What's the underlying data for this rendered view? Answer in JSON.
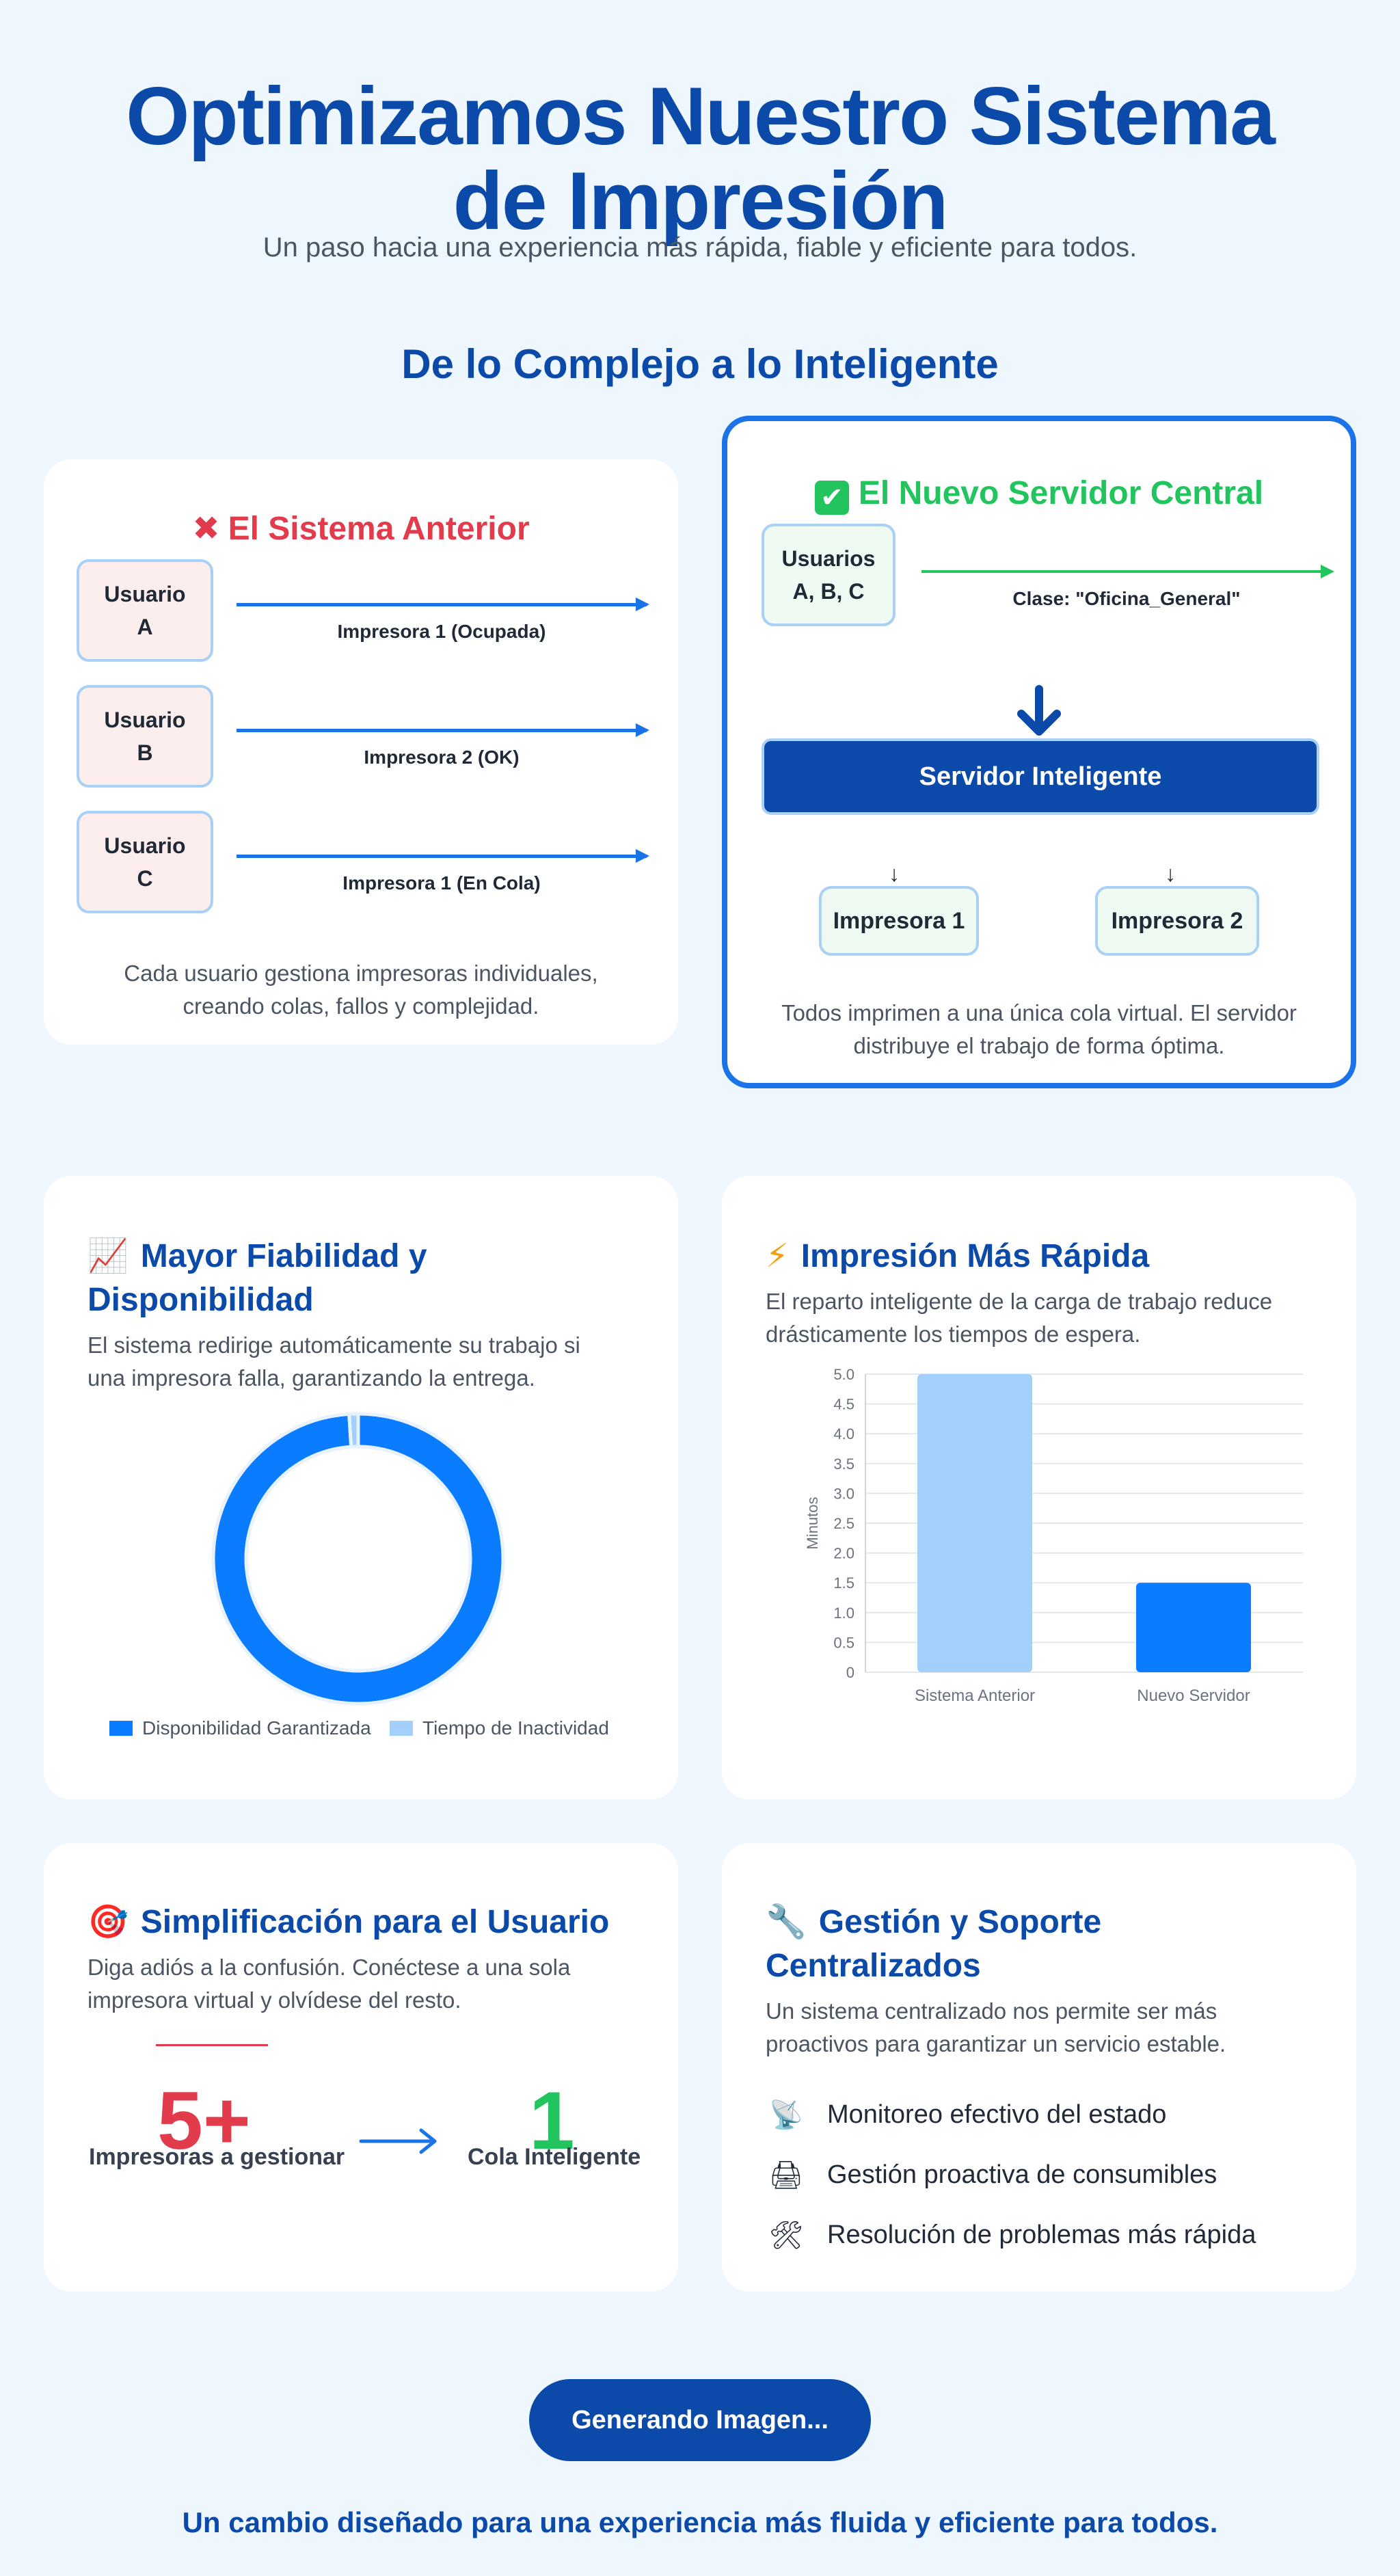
{
  "hero": {
    "title_line1": "Optimizamos Nuestro Sistema",
    "title_line2": "de Impresión",
    "subtitle": "Un paso hacia una experiencia más rápida, fiable y eficiente para todos."
  },
  "section": {
    "title": "De lo Complejo a lo Inteligente"
  },
  "old_system": {
    "icon": "✖",
    "title": "El Sistema Anterior",
    "rows": [
      {
        "user_line1": "Usuario",
        "user_line2": "A",
        "printer": "Impresora 1 (Ocupada)"
      },
      {
        "user_line1": "Usuario",
        "user_line2": "B",
        "printer": "Impresora 2 (OK)"
      },
      {
        "user_line1": "Usuario",
        "user_line2": "C",
        "printer": "Impresora 1 (En Cola)"
      }
    ],
    "desc_line1": "Cada usuario gestiona impresoras individuales,",
    "desc_line2": "creando colas, fallos y complejidad."
  },
  "new_system": {
    "icon": "✔",
    "title": "El Nuevo Servidor Central",
    "users_line1": "Usuarios",
    "users_line2": "A, B, C",
    "class_label": "Clase: \"Oficina_General\"",
    "server": "Servidor Inteligente",
    "printer1": "Impresora 1",
    "printer2": "Impresora 2",
    "desc_line1": "Todos imprimen a una única cola virtual. El servidor",
    "desc_line2": "distribuye el trabajo de forma óptima."
  },
  "reliability": {
    "icon": "📈",
    "title_line1": "Mayor Fiabilidad y",
    "title_line2": "Disponibilidad",
    "desc_line1": "El sistema redirige automáticamente su trabajo si",
    "desc_line2": "una impresora falla, garantizando la entrega.",
    "legend": [
      "Disponibilidad Garantizada",
      "Tiempo de Inactividad"
    ]
  },
  "speed": {
    "icon": "⚡",
    "title": "Impresión Más Rápida",
    "desc_line1": "El reparto inteligente de la carga de trabajo reduce",
    "desc_line2": "drásticamente los tiempos de espera."
  },
  "simplify": {
    "icon": "🎯",
    "title": "Simplificación para el Usuario",
    "desc_line1": "Diga adiós a la confusión. Conéctese a una sola",
    "desc_line2": "impresora virtual y olvídese del resto.",
    "big_left": "5+",
    "label_left": "Impresoras a gestionar",
    "big_right": "1",
    "label_right": "Cola Inteligente"
  },
  "support": {
    "icon": "🔧",
    "title_line1": "Gestión y Soporte",
    "title_line2": "Centralizados",
    "desc_line1": "Un sistema centralizado nos permite ser más",
    "desc_line2": "proactivos para garantizar un servicio estable.",
    "items": [
      {
        "icon": "📡",
        "label": "Monitoreo efectivo del estado"
      },
      {
        "icon": "🖨",
        "label": "Gestión proactiva de consumibles"
      },
      {
        "icon": "🛠",
        "label": "Resolución de problemas más rápida"
      }
    ]
  },
  "cta": {
    "label": "Generando Imagen..."
  },
  "footer": {
    "text": "Un cambio diseñado para una experiencia más fluida y eficiente para todos."
  },
  "colors": {
    "primary": "#0b4aa8",
    "accent": "#1a73e8",
    "bar_light": "#a3d0fb",
    "bar_dark": "#0a7cff",
    "red": "#e23b4c",
    "green": "#21c45d"
  },
  "chart_data": [
    {
      "type": "pie",
      "labels": [
        "Disponibilidad Garantizada",
        "Tiempo de Inactividad"
      ],
      "values": [
        99,
        1
      ],
      "legend": "bottom"
    },
    {
      "type": "bar",
      "categories": [
        "Sistema Anterior",
        "Nuevo Servidor"
      ],
      "values": [
        5.0,
        1.5
      ],
      "ylabel": "Minutos",
      "ylim": [
        0,
        5.0
      ],
      "yticks": [
        "0",
        "0.5",
        "1.0",
        "1.5",
        "2.0",
        "2.5",
        "3.0",
        "3.5",
        "4.0",
        "4.5",
        "5.0"
      ],
      "grid": true
    }
  ]
}
